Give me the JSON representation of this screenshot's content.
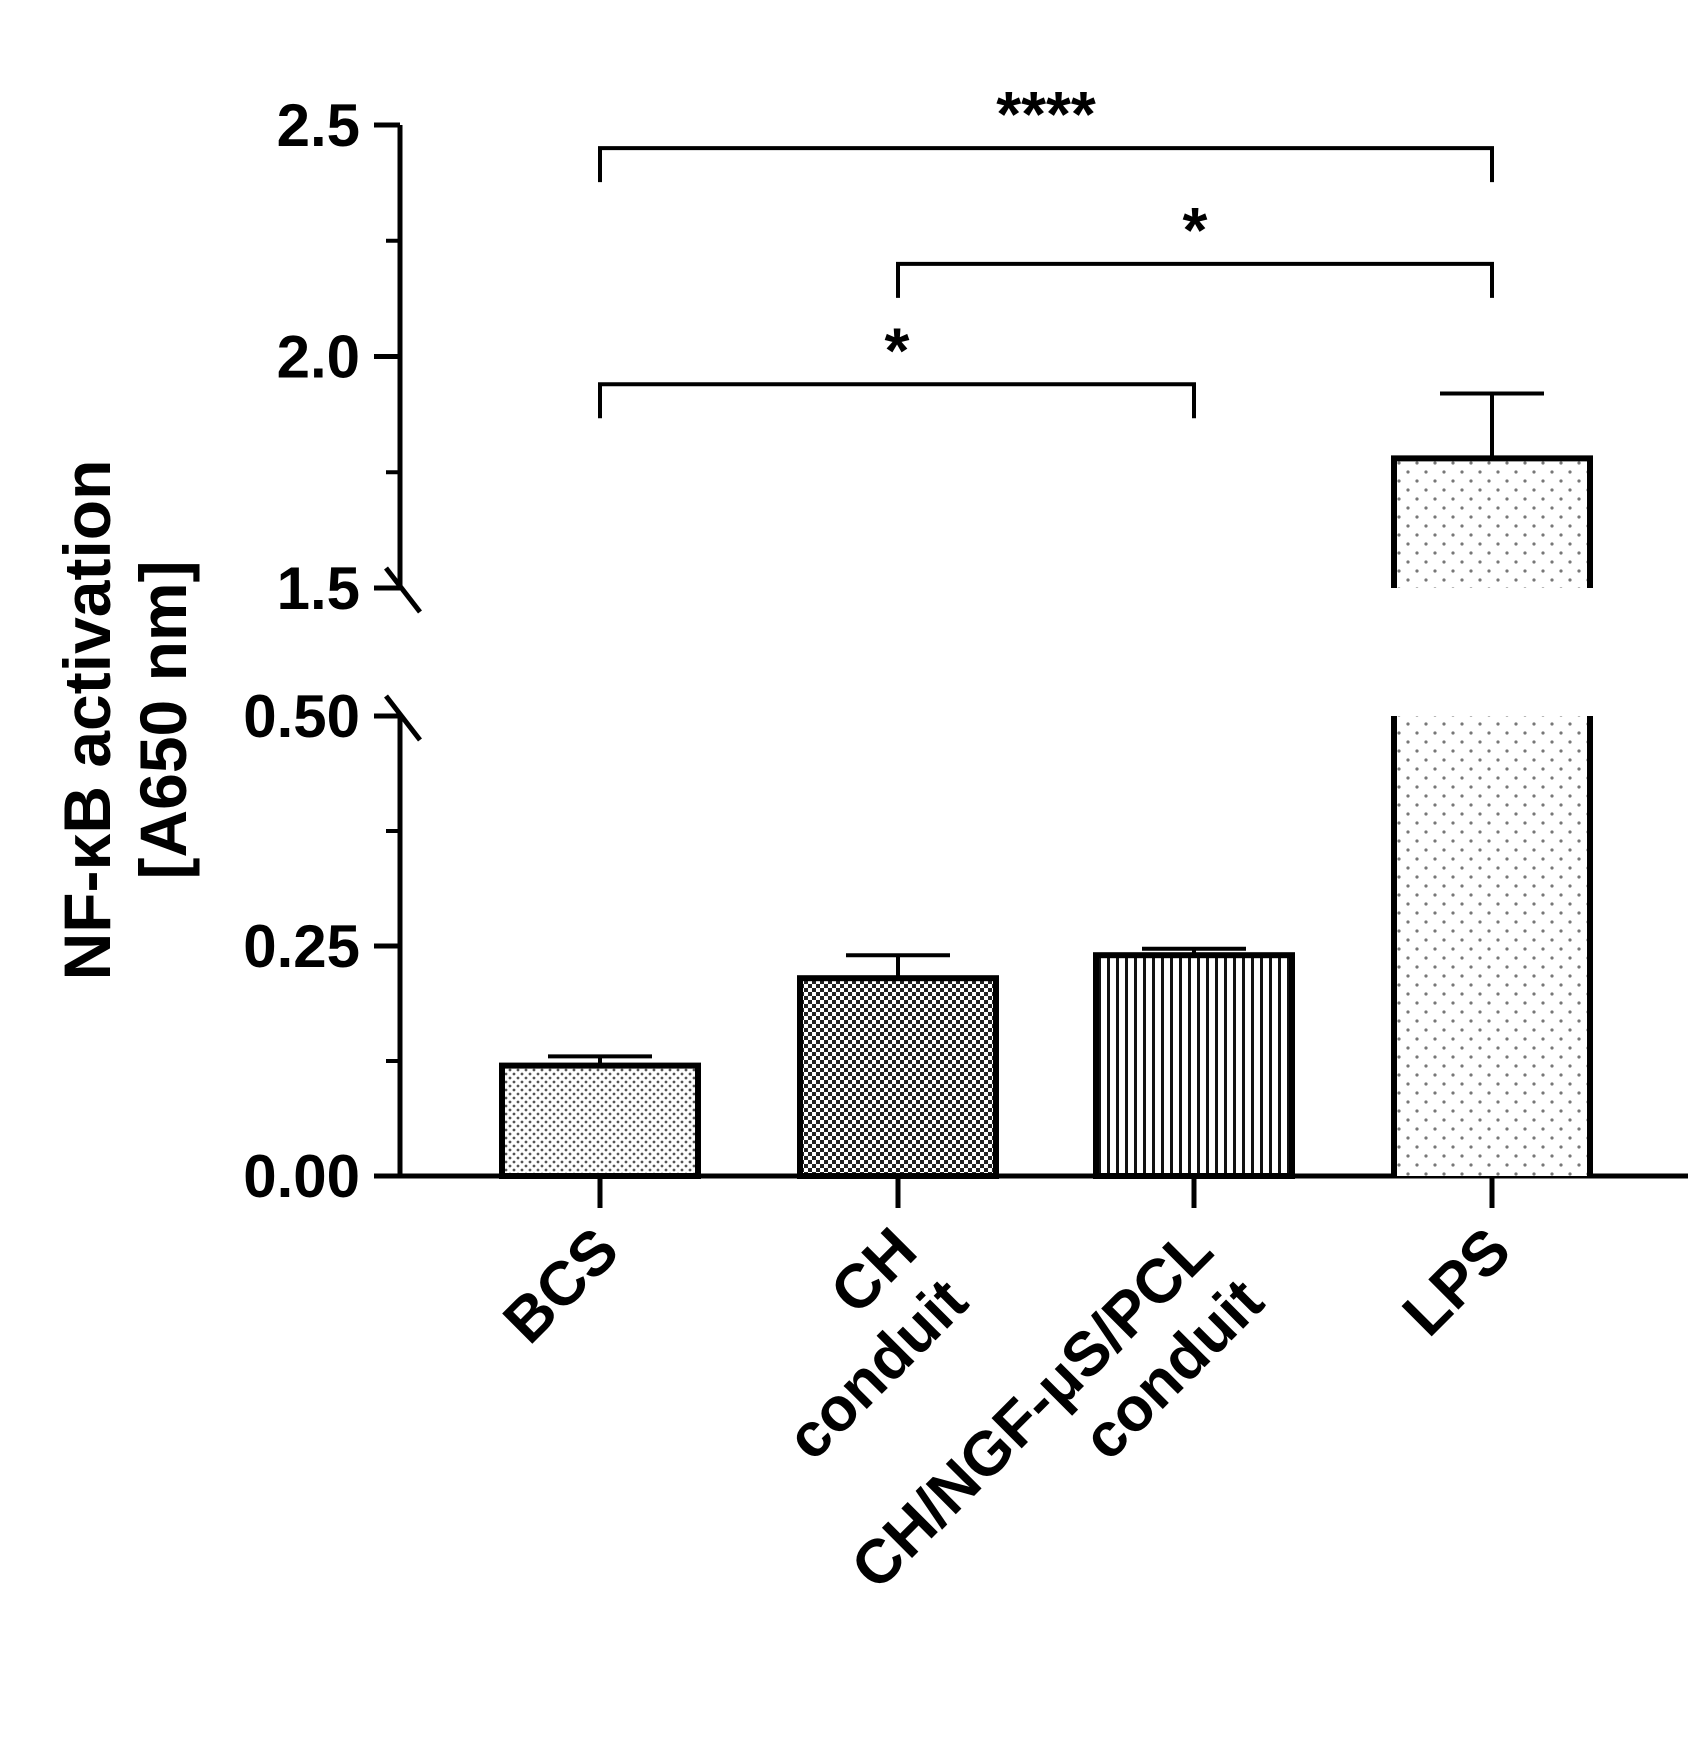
{
  "chart_data": {
    "type": "bar",
    "title": "",
    "ylabel_lines": [
      "NF-κB activation",
      "[A650 nm]"
    ],
    "categories": [
      {
        "lines": [
          "BCS"
        ]
      },
      {
        "lines": [
          "CH",
          "conduit"
        ]
      },
      {
        "lines": [
          "CH/NGF-μS/PCL",
          "conduit"
        ]
      },
      {
        "lines": [
          "LPS"
        ]
      }
    ],
    "values": [
      0.12,
      0.215,
      0.24,
      1.78
    ],
    "errors": [
      0.01,
      0.025,
      0.007,
      0.14
    ],
    "patterns": [
      "fine-dots",
      "checker",
      "vertical-lines",
      "sparse-dots"
    ],
    "y_axis_broken": true,
    "y_segments": [
      {
        "range": [
          0,
          0.5
        ],
        "ticks": [
          "0.00",
          "0.25",
          "0.50"
        ]
      },
      {
        "range": [
          1.5,
          2.5
        ],
        "ticks": [
          "1.5",
          "2.0",
          "2.5"
        ]
      }
    ],
    "significance": [
      {
        "from": 0,
        "to": 3,
        "label": "****",
        "level": 2.45
      },
      {
        "from": 1,
        "to": 3,
        "label": "*",
        "level": 2.2
      },
      {
        "from": 0,
        "to": 2,
        "label": "*",
        "level": 1.94
      }
    ]
  }
}
